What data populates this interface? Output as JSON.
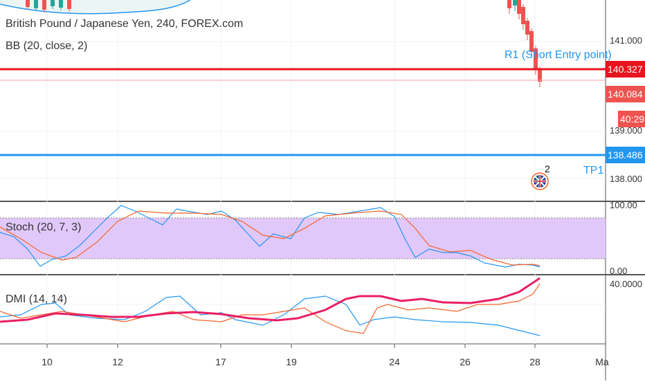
{
  "header": {
    "symbol_title": "British Pound / Japanese Yen, 240, FOREX.com",
    "bb_label": "BB (20, close, 2)"
  },
  "price_axis": {
    "ticks": [
      "141.000",
      "139.000",
      "138.000"
    ],
    "tags": {
      "r1": "140.327",
      "current": "140.084",
      "countdown": "40:29",
      "tp1": "138.486"
    }
  },
  "annotations": {
    "r1": "R1 (Short Entry point)",
    "tp1": "TP1",
    "event_count": "2"
  },
  "stoch": {
    "label": "Stoch (20, 7, 3)",
    "axis_top": "100.00",
    "axis_bottom": "0.00"
  },
  "dmi": {
    "label": "DMI (14, 14)",
    "axis": "40.0000"
  },
  "time_axis": {
    "dates": [
      "10",
      "12",
      "17",
      "19",
      "24",
      "26",
      "28",
      "Ma"
    ]
  },
  "colors": {
    "r1_line": "#e8141e",
    "tp1_line": "#2196f3",
    "candle_up": "#26a69a",
    "candle_down": "#ef5350",
    "stoch_fill": "#e1c8fa",
    "stoch_k": "#2196f3",
    "stoch_d": "#f4632a",
    "adx": "#e91e63"
  }
}
